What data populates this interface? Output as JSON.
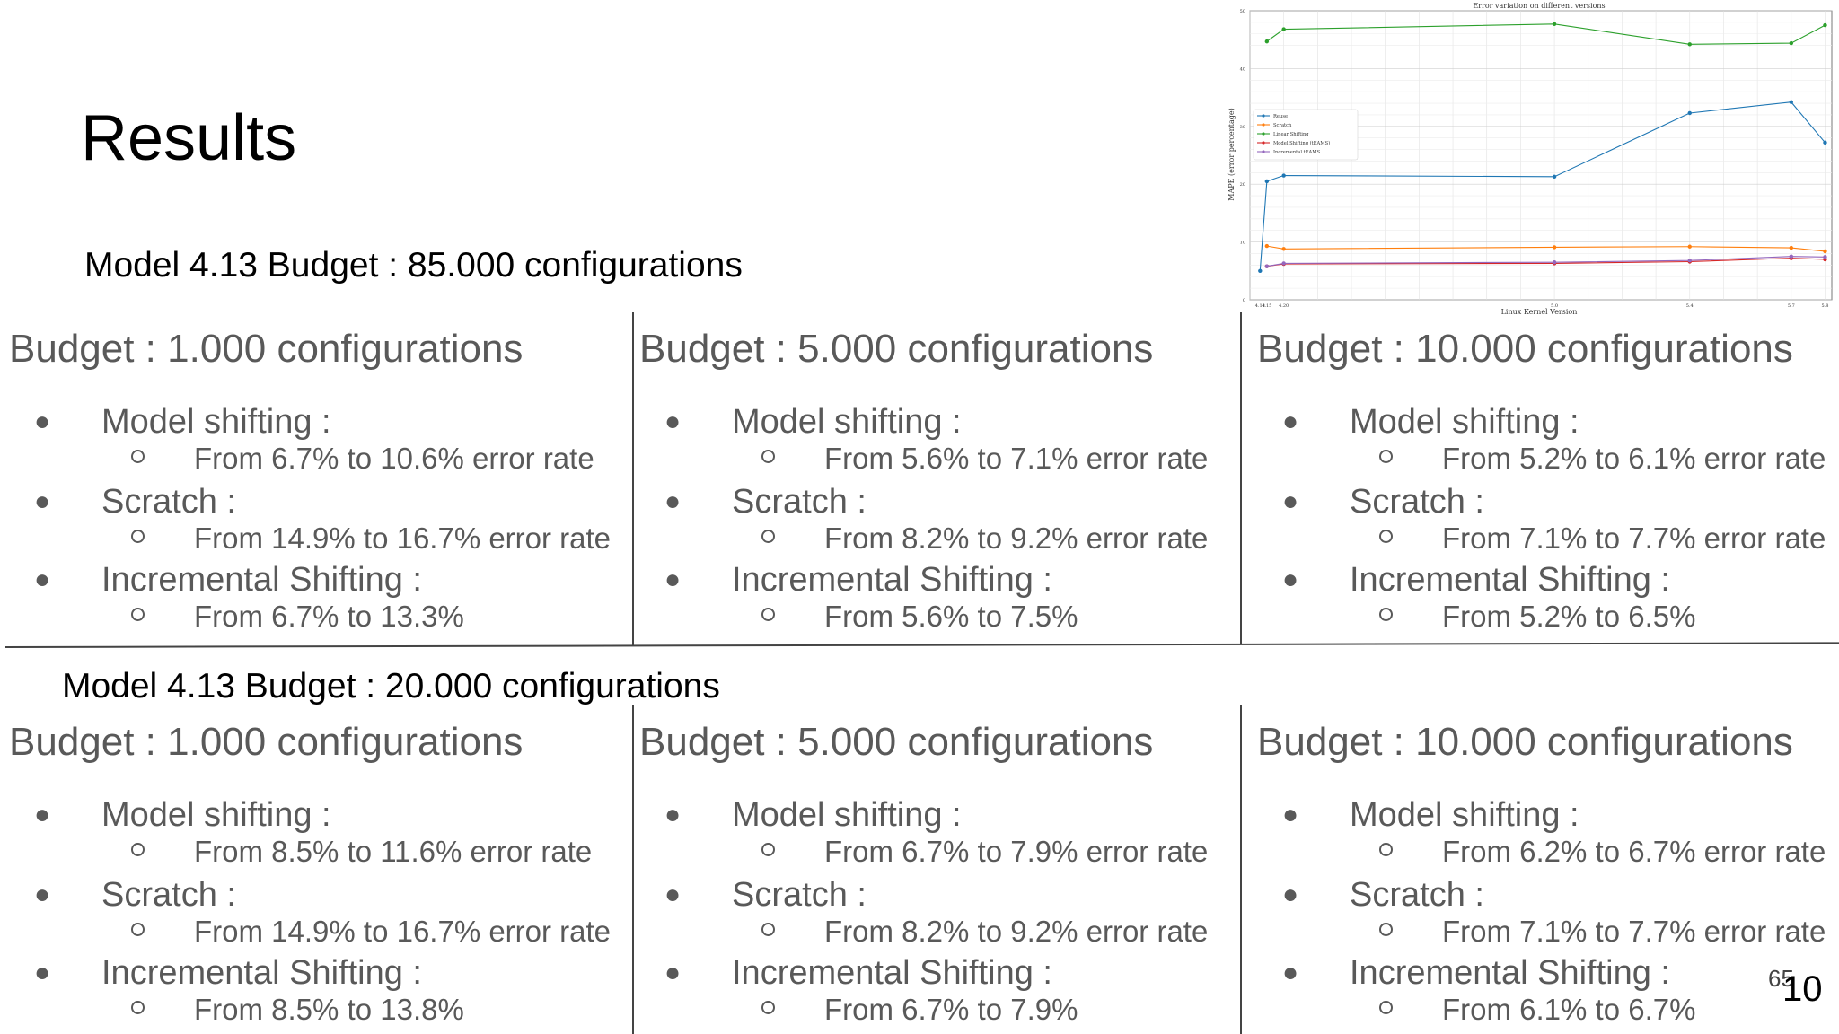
{
  "slide": {
    "title": "Results",
    "page_number": "10",
    "page_number_small": "65"
  },
  "sections": [
    {
      "heading": "Model 4.13 Budget : 85.000 configurations",
      "columns": [
        {
          "title": "Budget : 1.000 configurations",
          "items": [
            {
              "label": "Model shifting :",
              "detail": "From 6.7% to 10.6% error rate"
            },
            {
              "label": "Scratch :",
              "detail": "From 14.9% to 16.7% error rate"
            },
            {
              "label": "Incremental Shifting :",
              "detail": "From 6.7% to 13.3%"
            }
          ]
        },
        {
          "title": "Budget : 5.000 configurations",
          "items": [
            {
              "label": "Model shifting :",
              "detail": "From 5.6% to 7.1% error rate"
            },
            {
              "label": "Scratch :",
              "detail": "From 8.2% to 9.2% error rate"
            },
            {
              "label": "Incremental Shifting :",
              "detail": "From 5.6% to 7.5%"
            }
          ]
        },
        {
          "title": "Budget : 10.000 configurations",
          "items": [
            {
              "label": "Model shifting :",
              "detail": "From 5.2% to 6.1% error rate"
            },
            {
              "label": "Scratch :",
              "detail": "From 7.1% to 7.7% error rate"
            },
            {
              "label": "Incremental Shifting :",
              "detail": "From 5.2% to 6.5%"
            }
          ]
        }
      ]
    },
    {
      "heading": "Model 4.13 Budget : 20.000 configurations",
      "columns": [
        {
          "title": "Budget : 1.000 configurations",
          "items": [
            {
              "label": "Model shifting :",
              "detail": "From 8.5% to 11.6% error rate"
            },
            {
              "label": "Scratch :",
              "detail": "From 14.9% to 16.7% error rate"
            },
            {
              "label": "Incremental Shifting :",
              "detail": "From 8.5% to 13.8%"
            }
          ]
        },
        {
          "title": "Budget : 5.000 configurations",
          "items": [
            {
              "label": "Model shifting :",
              "detail": "From 6.7% to 7.9% error rate"
            },
            {
              "label": "Scratch :",
              "detail": "From 8.2% to 9.2% error rate"
            },
            {
              "label": "Incremental Shifting :",
              "detail": "From 6.7% to 7.9%"
            }
          ]
        },
        {
          "title": "Budget : 10.000 configurations",
          "items": [
            {
              "label": "Model shifting :",
              "detail": "From 6.2% to 6.7% error rate"
            },
            {
              "label": "Scratch :",
              "detail": "From 7.1% to 7.7% error rate"
            },
            {
              "label": "Incremental Shifting :",
              "detail": "From 6.1% to 6.7%"
            }
          ]
        }
      ]
    }
  ],
  "chart_data": {
    "type": "line",
    "title": "Error variation on different versions",
    "xlabel": "Linux Kernel Version",
    "ylabel": "MAPE (error percentage)",
    "x": [
      4.13,
      4.15,
      4.2,
      5.0,
      5.4,
      5.7,
      5.8
    ],
    "x_tick_labels": [
      "4.13",
      "4.15",
      "4.20",
      "5.0",
      "5.4",
      "5.7",
      "5.8"
    ],
    "ylim": [
      0,
      50
    ],
    "y_ticks": [
      0,
      10,
      20,
      30,
      40,
      50
    ],
    "grid": true,
    "legend_position": "center-left",
    "series": [
      {
        "name": "Reuse",
        "color": "#1f77b4",
        "values": [
          5,
          20.5,
          21.5,
          21.3,
          32.3,
          34.2,
          27.2
        ]
      },
      {
        "name": "Scratch",
        "color": "#ff7f0e",
        "values": [
          null,
          9.3,
          8.8,
          9.1,
          9.2,
          9.0,
          8.4
        ]
      },
      {
        "name": "Linear Shifting",
        "color": "#2ca02c",
        "values": [
          null,
          44.7,
          46.8,
          47.7,
          44.2,
          44.4,
          47.5
        ]
      },
      {
        "name": "Model Shifting (tEAMS)",
        "color": "#d62728",
        "values": [
          null,
          5.8,
          6.2,
          6.3,
          6.6,
          7.2,
          7.0
        ]
      },
      {
        "name": "Incremental tEAMS",
        "color": "#9467bd",
        "values": [
          null,
          5.8,
          6.3,
          6.5,
          6.8,
          7.5,
          7.4
        ]
      }
    ]
  }
}
